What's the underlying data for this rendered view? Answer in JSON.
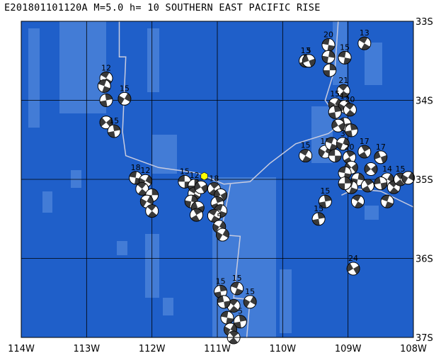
{
  "title": "E201801101120A  M=5.0  h= 10  SOUTHERN EAST PACIFIC RISE",
  "map": {
    "lon_min": -114,
    "lon_max": -108,
    "lat_min": -37,
    "lat_max": -33,
    "lon_ticks": [
      {
        "value": -114,
        "label": "114W"
      },
      {
        "value": -113,
        "label": "113W"
      },
      {
        "value": -112,
        "label": "112W"
      },
      {
        "value": -111,
        "label": "111W"
      },
      {
        "value": -110,
        "label": "110W"
      },
      {
        "value": -109,
        "label": "109W"
      },
      {
        "value": -108,
        "label": "108W"
      }
    ],
    "lat_ticks": [
      {
        "value": -33,
        "label": "33S"
      },
      {
        "value": -34,
        "label": "34S"
      },
      {
        "value": -35,
        "label": "35S"
      },
      {
        "value": -36,
        "label": "36S"
      },
      {
        "value": -37,
        "label": "37S"
      }
    ],
    "colors": {
      "ocean": "#1f5fc9",
      "seafloor_light": "#4f86db",
      "plate_boundary": "#c8cce0",
      "mechanism_dark": "#3a3a3a",
      "mechanism_light": "#ffffff",
      "gridline": "#000000",
      "event_marker": "#ffff00"
    },
    "event": {
      "lon": -111.2,
      "lat": -34.96
    },
    "plate_boundary": [
      [
        -112.5,
        -33.0
      ],
      [
        -112.5,
        -33.45
      ],
      [
        -112.4,
        -33.45
      ],
      [
        -112.45,
        -34.4
      ],
      [
        -112.4,
        -34.7
      ],
      [
        -111.9,
        -34.85
      ],
      [
        -111.3,
        -34.92
      ],
      [
        -110.9,
        -35.06
      ],
      [
        -110.5,
        -35.03
      ],
      [
        -110.2,
        -34.8
      ],
      [
        -109.8,
        -34.55
      ],
      [
        -109.3,
        -34.42
      ],
      [
        -109.1,
        -34.3
      ],
      [
        -109.35,
        -34.0
      ],
      [
        -109.2,
        -33.6
      ],
      [
        -109.15,
        -33.0
      ]
    ],
    "plate_boundary_2": [
      [
        -108.0,
        -35.35
      ],
      [
        -108.5,
        -35.15
      ],
      [
        -108.9,
        -35.12
      ],
      [
        -109.1,
        -35.2
      ]
    ],
    "transform": [
      [
        -110.8,
        -35.06
      ],
      [
        -110.95,
        -35.7
      ],
      [
        -110.65,
        -35.72
      ],
      [
        -110.75,
        -36.5
      ],
      [
        -110.5,
        -36.52
      ],
      [
        -110.55,
        -37.0
      ]
    ],
    "mechanisms": [
      {
        "lon": -112.7,
        "lat": -33.72,
        "label": "12",
        "rot": 30
      },
      {
        "lon": -112.73,
        "lat": -33.82,
        "label": "",
        "rot": 200
      },
      {
        "lon": -112.42,
        "lat": -33.98,
        "label": "15",
        "rot": 300
      },
      {
        "lon": -112.7,
        "lat": -34.0,
        "label": "",
        "rot": 80
      },
      {
        "lon": -112.7,
        "lat": -34.28,
        "label": "",
        "rot": 140
      },
      {
        "lon": -112.58,
        "lat": -34.39,
        "label": "15",
        "rot": 260
      },
      {
        "lon": -112.25,
        "lat": -34.98,
        "label": "18",
        "rot": 10
      },
      {
        "lon": -112.1,
        "lat": -35.02,
        "label": "12",
        "rot": 120
      },
      {
        "lon": -112.15,
        "lat": -35.12,
        "label": "",
        "rot": 220
      },
      {
        "lon": -112.0,
        "lat": -35.2,
        "label": "",
        "rot": 90
      },
      {
        "lon": -112.08,
        "lat": -35.28,
        "label": "",
        "rot": 300
      },
      {
        "lon": -112.0,
        "lat": -35.4,
        "label": "",
        "rot": 40
      },
      {
        "lon": -111.5,
        "lat": -35.03,
        "label": "15",
        "rot": 180
      },
      {
        "lon": -111.35,
        "lat": -35.08,
        "label": "12",
        "rot": 270
      },
      {
        "lon": -111.35,
        "lat": -35.18,
        "label": "",
        "rot": 30
      },
      {
        "lon": -111.4,
        "lat": -35.28,
        "label": "",
        "rot": 100
      },
      {
        "lon": -111.3,
        "lat": -35.36,
        "label": "",
        "rot": 160
      },
      {
        "lon": -111.32,
        "lat": -35.45,
        "label": "",
        "rot": 240
      },
      {
        "lon": -111.25,
        "lat": -35.1,
        "label": "",
        "rot": 330
      },
      {
        "lon": -111.05,
        "lat": -35.12,
        "label": "18",
        "rot": 50
      },
      {
        "lon": -110.95,
        "lat": -35.2,
        "label": "",
        "rot": 150
      },
      {
        "lon": -111.0,
        "lat": -35.3,
        "label": "",
        "rot": 250
      },
      {
        "lon": -110.95,
        "lat": -35.4,
        "label": "",
        "rot": 20
      },
      {
        "lon": -111.05,
        "lat": -35.46,
        "label": "",
        "rot": 210
      },
      {
        "lon": -110.97,
        "lat": -35.6,
        "label": "5",
        "rot": 120
      },
      {
        "lon": -110.92,
        "lat": -35.7,
        "label": "",
        "rot": 300
      },
      {
        "lon": -109.65,
        "lat": -33.5,
        "label": "13",
        "rot": 70
      },
      {
        "lon": -109.6,
        "lat": -33.5,
        "label": "5",
        "rot": 160
      },
      {
        "lon": -109.3,
        "lat": -33.3,
        "label": "20",
        "rot": 10
      },
      {
        "lon": -109.3,
        "lat": -33.45,
        "label": "",
        "rot": 280
      },
      {
        "lon": -109.05,
        "lat": -33.46,
        "label": "15",
        "rot": 190
      },
      {
        "lon": -109.28,
        "lat": -33.62,
        "label": "",
        "rot": 90
      },
      {
        "lon": -108.75,
        "lat": -33.28,
        "label": "13",
        "rot": 30
      },
      {
        "lon": -109.07,
        "lat": -33.88,
        "label": "21",
        "rot": 220
      },
      {
        "lon": -109.2,
        "lat": -34.05,
        "label": "15",
        "rot": 120
      },
      {
        "lon": -109.05,
        "lat": -34.08,
        "label": "17",
        "rot": 300
      },
      {
        "lon": -108.97,
        "lat": -34.12,
        "label": "20",
        "rot": 40
      },
      {
        "lon": -109.2,
        "lat": -34.15,
        "label": "",
        "rot": 260
      },
      {
        "lon": -109.05,
        "lat": -34.3,
        "label": "",
        "rot": 170
      },
      {
        "lon": -109.15,
        "lat": -34.32,
        "label": "",
        "rot": 330
      },
      {
        "lon": -108.95,
        "lat": -34.38,
        "label": "",
        "rot": 80
      },
      {
        "lon": -109.65,
        "lat": -34.7,
        "label": "15",
        "rot": 210
      },
      {
        "lon": -109.35,
        "lat": -34.65,
        "label": "15",
        "rot": 120
      },
      {
        "lon": -109.25,
        "lat": -34.55,
        "label": "",
        "rot": 20
      },
      {
        "lon": -109.08,
        "lat": -34.55,
        "label": "3",
        "rot": 290
      },
      {
        "lon": -109.2,
        "lat": -34.7,
        "label": "",
        "rot": 180
      },
      {
        "lon": -108.98,
        "lat": -34.72,
        "label": "20",
        "rot": 60
      },
      {
        "lon": -108.75,
        "lat": -34.65,
        "label": "17",
        "rot": 240
      },
      {
        "lon": -108.65,
        "lat": -34.87,
        "label": "",
        "rot": 140
      },
      {
        "lon": -108.95,
        "lat": -34.85,
        "label": "",
        "rot": 320
      },
      {
        "lon": -108.85,
        "lat": -35.0,
        "label": "",
        "rot": 100
      },
      {
        "lon": -109.05,
        "lat": -34.92,
        "label": "",
        "rot": 10
      },
      {
        "lon": -108.95,
        "lat": -35.1,
        "label": "",
        "rot": 200
      },
      {
        "lon": -109.05,
        "lat": -35.05,
        "label": "",
        "rot": 270
      },
      {
        "lon": -108.7,
        "lat": -35.08,
        "label": "",
        "rot": 60
      },
      {
        "lon": -108.5,
        "lat": -34.72,
        "label": "17",
        "rot": 160
      },
      {
        "lon": -108.4,
        "lat": -35.0,
        "label": "14",
        "rot": 300
      },
      {
        "lon": -108.3,
        "lat": -35.1,
        "label": "",
        "rot": 40
      },
      {
        "lon": -108.2,
        "lat": -35.0,
        "label": "15",
        "rot": 230
      },
      {
        "lon": -108.08,
        "lat": -34.98,
        "label": "",
        "rot": 120
      },
      {
        "lon": -108.5,
        "lat": -35.05,
        "label": "",
        "rot": 350
      },
      {
        "lon": -108.4,
        "lat": -35.28,
        "label": "",
        "rot": 200
      },
      {
        "lon": -109.35,
        "lat": -35.28,
        "label": "15",
        "rot": 80
      },
      {
        "lon": -109.45,
        "lat": -35.5,
        "label": "15",
        "rot": 260
      },
      {
        "lon": -108.85,
        "lat": -35.28,
        "label": "",
        "rot": 30
      },
      {
        "lon": -108.92,
        "lat": -36.13,
        "label": "24",
        "rot": 150
      },
      {
        "lon": -110.95,
        "lat": -36.42,
        "label": "15",
        "rot": 80
      },
      {
        "lon": -110.7,
        "lat": -36.38,
        "label": "15",
        "rot": 200
      },
      {
        "lon": -110.5,
        "lat": -36.55,
        "label": "15",
        "rot": 300
      },
      {
        "lon": -110.75,
        "lat": -36.6,
        "label": "",
        "rot": 40
      },
      {
        "lon": -110.9,
        "lat": -36.55,
        "label": "",
        "rot": 170
      },
      {
        "lon": -110.65,
        "lat": -36.8,
        "label": "5",
        "rot": 260
      },
      {
        "lon": -110.85,
        "lat": -36.75,
        "label": "",
        "rot": 10
      },
      {
        "lon": -110.8,
        "lat": -36.9,
        "label": "",
        "rot": 120
      },
      {
        "lon": -110.75,
        "lat": -37.0,
        "label": "",
        "rot": 230
      }
    ]
  }
}
